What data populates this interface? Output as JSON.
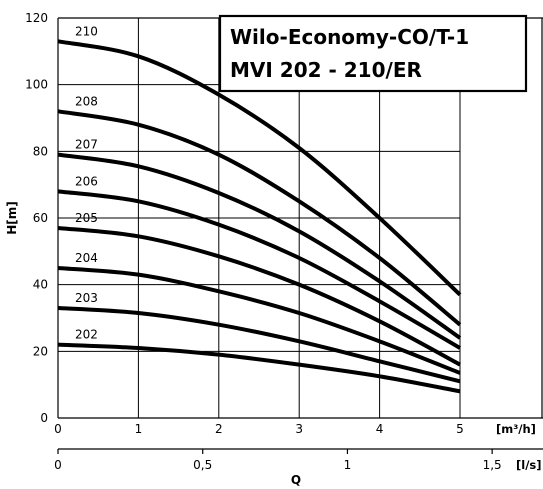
{
  "chart_data": {
    "type": "line",
    "title": [
      "Wilo-Economy-CO/T-1",
      "MVI 202 - 210/ER"
    ],
    "xlabel": "Q",
    "ylabel": "H[m]",
    "x_unit_primary": "[m³/h]",
    "x_unit_secondary": "[l/s]",
    "xlim": [
      0,
      5.3
    ],
    "ylim": [
      0,
      120
    ],
    "x_ticks": [
      0,
      1,
      2,
      3,
      4,
      5
    ],
    "x_tick_labels": [
      "0",
      "1",
      "2",
      "3",
      "4",
      "5"
    ],
    "x2_ticks": [
      0,
      0.5,
      1,
      1.5
    ],
    "x2_tick_labels": [
      "0",
      "0,5",
      "1",
      "1,5"
    ],
    "y_ticks": [
      0,
      20,
      40,
      60,
      80,
      100,
      120
    ],
    "y_tick_labels": [
      "0",
      "20",
      "40",
      "60",
      "80",
      "100",
      "120"
    ],
    "grid": true,
    "series": [
      {
        "name": "210",
        "x": [
          0,
          1,
          2,
          3,
          4,
          5
        ],
        "y": [
          113,
          108.5,
          97,
          81,
          60,
          37
        ]
      },
      {
        "name": "208",
        "x": [
          0,
          1,
          2,
          3,
          4,
          5
        ],
        "y": [
          92,
          88,
          79,
          65,
          48,
          28
        ]
      },
      {
        "name": "207",
        "x": [
          0,
          1,
          2,
          3,
          4,
          5
        ],
        "y": [
          79,
          75.5,
          67.5,
          56,
          41,
          24
        ]
      },
      {
        "name": "206",
        "x": [
          0,
          1,
          2,
          3,
          4,
          5
        ],
        "y": [
          68,
          65,
          58,
          48,
          35,
          21
        ]
      },
      {
        "name": "205",
        "x": [
          0,
          1,
          2,
          3,
          4,
          5
        ],
        "y": [
          57,
          54.5,
          48.5,
          40,
          29,
          16
        ]
      },
      {
        "name": "204",
        "x": [
          0,
          1,
          2,
          3,
          4,
          5
        ],
        "y": [
          45,
          43,
          38,
          31.5,
          23,
          13.5
        ]
      },
      {
        "name": "203",
        "x": [
          0,
          1,
          2,
          3,
          4,
          5
        ],
        "y": [
          33,
          31.5,
          28,
          23,
          17,
          11
        ]
      },
      {
        "name": "202",
        "x": [
          0,
          1,
          2,
          3,
          4,
          5
        ],
        "y": [
          22,
          21,
          19,
          16,
          12.5,
          8
        ]
      }
    ]
  }
}
